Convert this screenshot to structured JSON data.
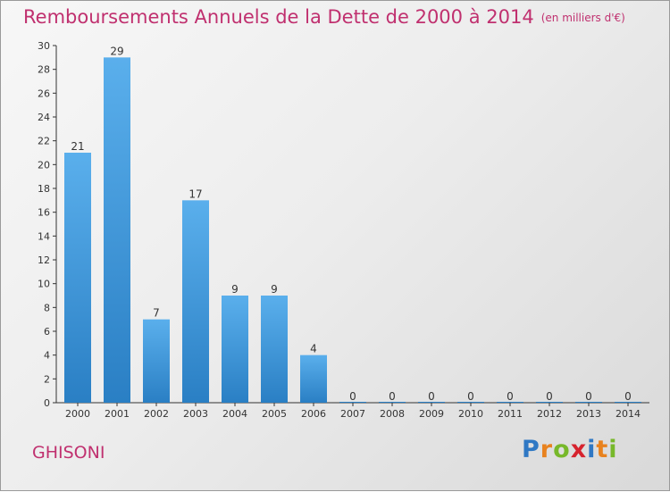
{
  "header": {
    "title": "Remboursements Annuels de la Dette de 2000 à 2014",
    "unit": "(en milliers d'€)"
  },
  "footer": {
    "city": "GHISONI",
    "brand": {
      "letters": [
        "P",
        "r",
        "o",
        "x",
        "i",
        "t",
        "i"
      ],
      "colors": [
        "#2f78c4",
        "#e8821e",
        "#77b82a",
        "#d6232e",
        "#2f78c4",
        "#e8821e",
        "#77b82a"
      ]
    }
  },
  "chart_data": {
    "type": "bar",
    "title": "Remboursements Annuels de la Dette de 2000 à 2014",
    "xlabel": "",
    "ylabel": "",
    "categories": [
      "2000",
      "2001",
      "2002",
      "2003",
      "2004",
      "2005",
      "2006",
      "2007",
      "2008",
      "2009",
      "2010",
      "2011",
      "2012",
      "2013",
      "2014"
    ],
    "values": [
      21,
      29,
      7,
      17,
      9,
      9,
      4,
      0,
      0,
      0,
      0,
      0,
      0,
      0,
      0
    ],
    "ylim": [
      0,
      30
    ],
    "yticks": [
      0,
      2,
      4,
      6,
      8,
      10,
      12,
      14,
      16,
      18,
      20,
      22,
      24,
      26,
      28,
      30
    ],
    "grid": false,
    "legend": "none",
    "colors": {
      "bar_light": "#5aafec",
      "bar_dark": "#2a7fc4",
      "title": "#c0306f"
    }
  }
}
